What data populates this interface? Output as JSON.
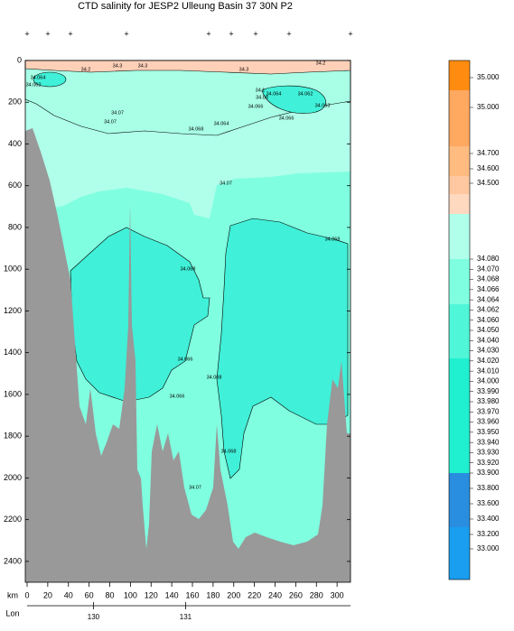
{
  "chart_data": {
    "type": "contour",
    "title": "CTD salinity for JESP2 Ulleung Basin 37 30N P2",
    "xlabel": "km",
    "x2label": "Lon",
    "xlim": [
      0,
      313
    ],
    "xticks": [
      0,
      20,
      40,
      60,
      80,
      100,
      120,
      140,
      160,
      180,
      200,
      220,
      240,
      260,
      280,
      300
    ],
    "ylim": [
      0,
      2500
    ],
    "yticks": [
      0,
      200,
      400,
      600,
      800,
      1000,
      1200,
      1400,
      1600,
      1800,
      2000,
      2200,
      2400
    ],
    "x2lim": [
      129.28,
      132.79
    ],
    "x2ticks": [
      130,
      131
    ],
    "contour_labels": [
      "34.2",
      "34.3",
      "34.3",
      "34.3",
      "34.2",
      "34.064",
      "34.062",
      "34.1",
      "34.064",
      "34.062",
      "34.08",
      "34.066",
      "34.063",
      "34.07",
      "34.07",
      "34.064",
      "34.066",
      "34.068",
      "34.07",
      "34.068",
      "34.068",
      "34.066",
      "34.068",
      "34.066",
      "34.068",
      "34.07"
    ],
    "colorbar_labels": [
      "35.000",
      "35.000",
      "34.700",
      "34.600",
      "34.500",
      "34.080",
      "34.070",
      "34.068",
      "34.066",
      "34.064",
      "34.062",
      "34.060",
      "34.050",
      "34.040",
      "34.030",
      "34.020",
      "34.010",
      "34.000",
      "33.990",
      "33.980",
      "33.970",
      "33.960",
      "33.950",
      "33.940",
      "33.930",
      "33.920",
      "33.900",
      "33.800",
      "33.600",
      "33.400",
      "33.200",
      "33.000"
    ]
  }
}
